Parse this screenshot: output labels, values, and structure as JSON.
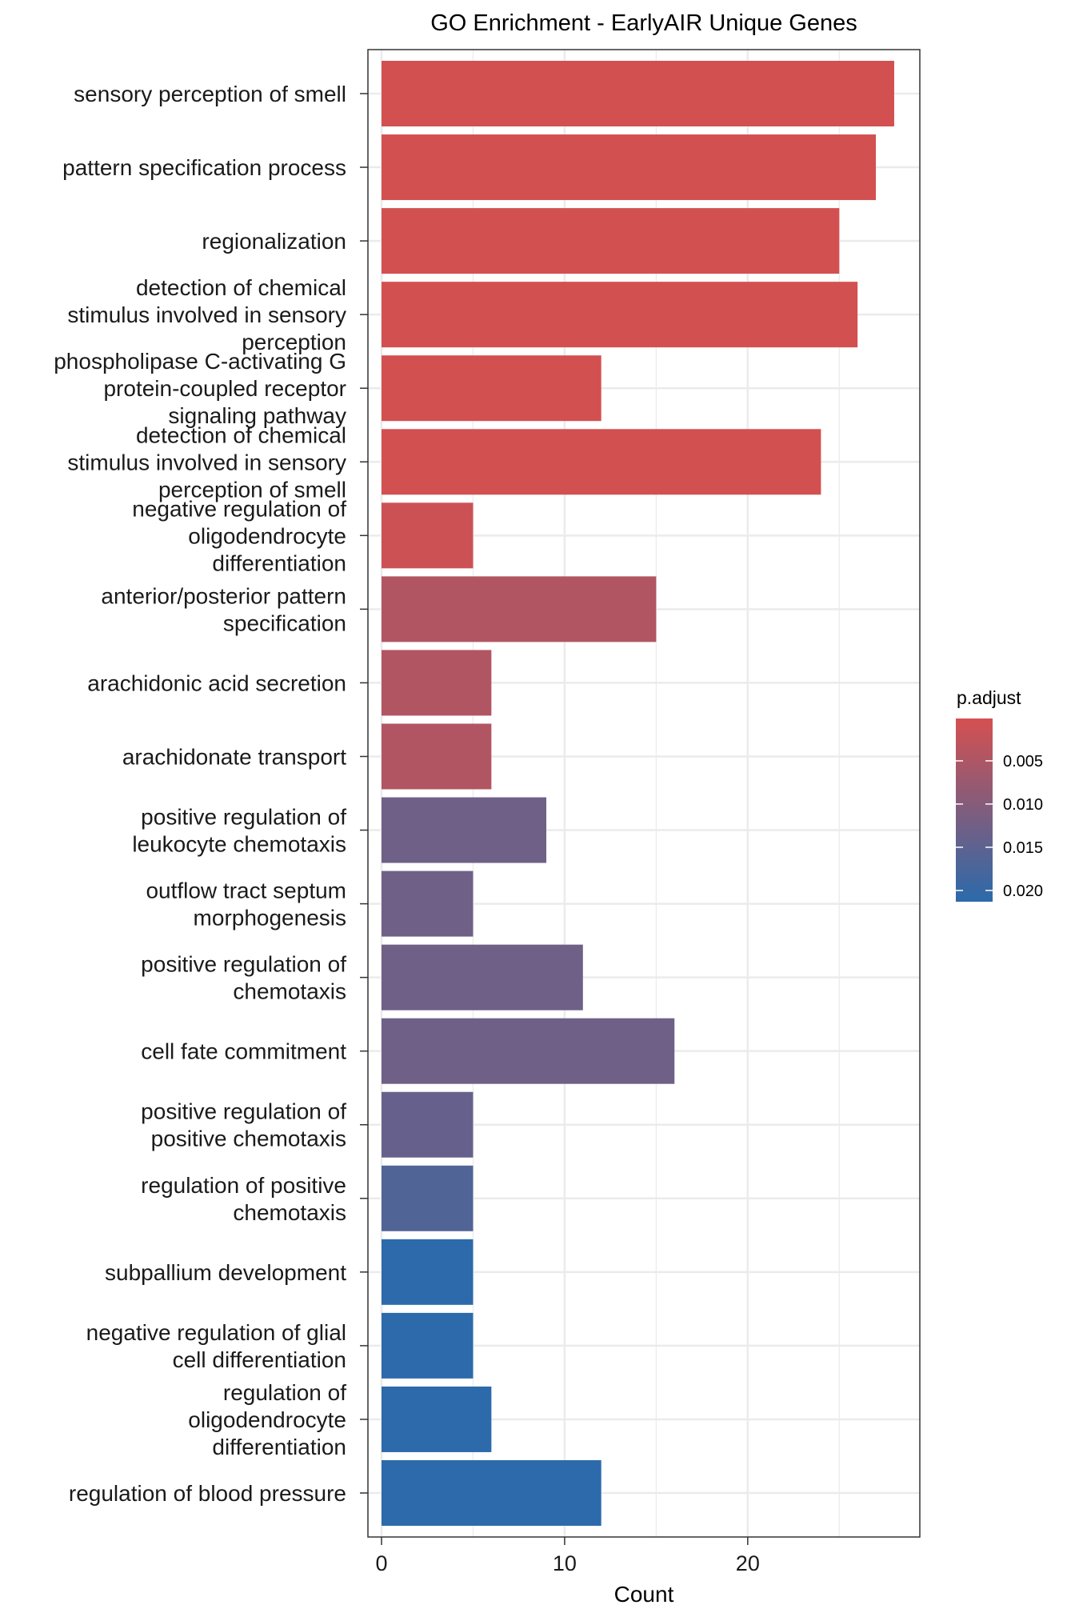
{
  "chart_data": {
    "type": "bar",
    "orientation": "horizontal",
    "title": "GO Enrichment - EarlyAIR Unique Genes",
    "xlabel": "Count",
    "ylabel": "",
    "xlim": [
      0,
      29.4
    ],
    "xticks": [
      0,
      10,
      20
    ],
    "grid": true,
    "categories": [
      [
        "sensory perception of smell"
      ],
      [
        "pattern specification process"
      ],
      [
        "regionalization"
      ],
      [
        "detection of chemical",
        "stimulus involved in sensory",
        "perception"
      ],
      [
        "phospholipase C-activating G",
        "protein-coupled receptor",
        "signaling pathway"
      ],
      [
        "detection of chemical",
        "stimulus involved in sensory",
        "perception of smell"
      ],
      [
        "negative regulation of",
        "oligodendrocyte",
        "differentiation"
      ],
      [
        "anterior/posterior pattern",
        "specification"
      ],
      [
        "arachidonic acid secretion"
      ],
      [
        "arachidonate transport"
      ],
      [
        "positive regulation of",
        "leukocyte chemotaxis"
      ],
      [
        "outflow tract septum",
        "morphogenesis"
      ],
      [
        "positive regulation of",
        "chemotaxis"
      ],
      [
        "cell fate commitment"
      ],
      [
        "positive regulation of",
        "positive chemotaxis"
      ],
      [
        "regulation of positive",
        "chemotaxis"
      ],
      [
        "subpallium development"
      ],
      [
        "negative regulation of glial",
        "cell differentiation"
      ],
      [
        "regulation of",
        "oligodendrocyte",
        "differentiation"
      ],
      [
        "regulation of blood pressure"
      ]
    ],
    "values": [
      28,
      27,
      25,
      26,
      12,
      24,
      5,
      15,
      6,
      6,
      9,
      5,
      11,
      16,
      5,
      5,
      5,
      5,
      6,
      12
    ],
    "p_adjust": [
      0.0003,
      0.0003,
      0.0003,
      0.0003,
      0.0004,
      0.0004,
      0.0012,
      0.0045,
      0.0045,
      0.0045,
      0.0128,
      0.0128,
      0.0128,
      0.0128,
      0.014,
      0.0165,
      0.0212,
      0.0212,
      0.0212,
      0.0212
    ],
    "legend": {
      "title": "p.adjust",
      "position": "right",
      "ticks": [
        "0.005",
        "0.010",
        "0.015",
        "0.020"
      ],
      "tick_values": [
        0.005,
        0.01,
        0.015,
        0.02
      ],
      "range": [
        0.0001,
        0.0213
      ],
      "low_color": "#d55050",
      "high_color": "#2b6aab"
    }
  }
}
